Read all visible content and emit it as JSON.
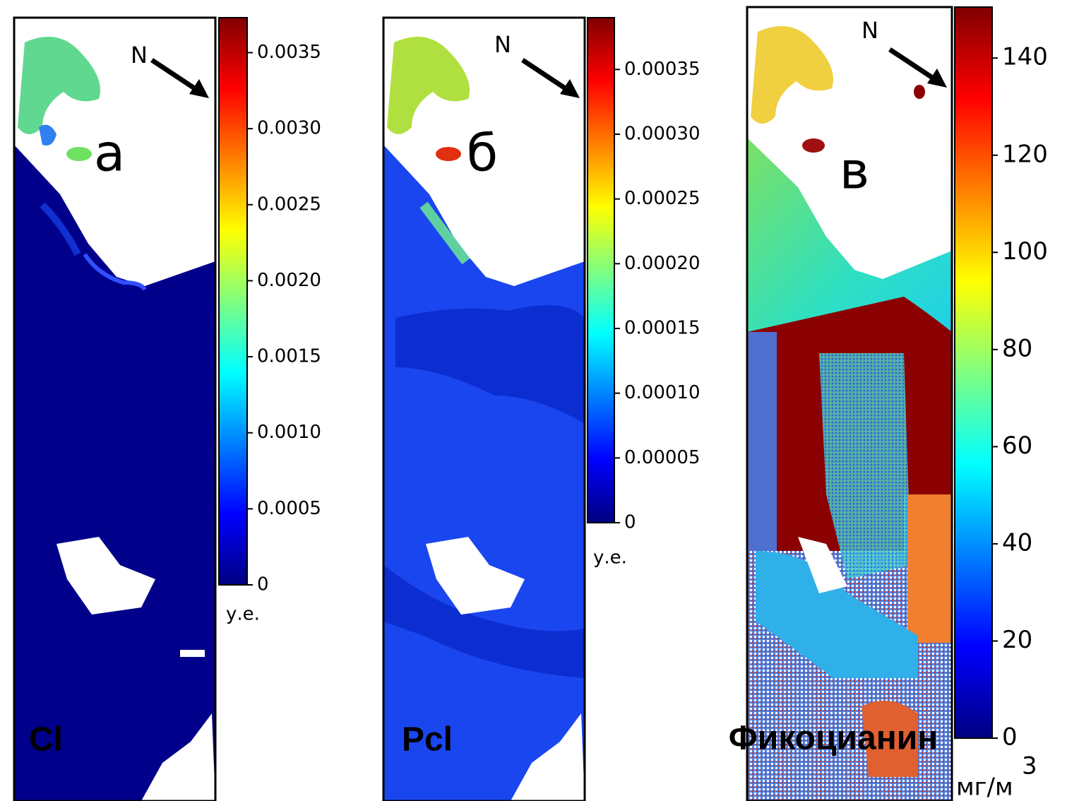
{
  "panels": [
    {
      "letter": "а",
      "north": "N",
      "label": "Cl",
      "colorbar": {
        "lim": [
          0,
          0.00373
        ],
        "ticks": [
          0,
          0.0005,
          {
            "value": 0.001,
            "label": "0.0010"
          },
          0.0015,
          {
            "value": 0.002,
            "label": "0.0020"
          },
          0.0025,
          {
            "value": 0.003,
            "label": "0.0030"
          },
          0.0035
        ],
        "unit": "у.е."
      }
    },
    {
      "letter": "б",
      "north": "N",
      "label": "Pcl",
      "colorbar": {
        "lim": [
          0,
          0.00039
        ],
        "ticks": [
          0,
          5e-05,
          {
            "value": 0.0001,
            "label": "0.00010"
          },
          0.00015,
          {
            "value": 0.0002,
            "label": "0.00020"
          },
          0.00025,
          {
            "value": 0.0003,
            "label": "0.00030"
          },
          0.00035
        ],
        "unit": "у.е."
      }
    },
    {
      "letter": "в",
      "north": "N",
      "label": "Фикоцианин",
      "colorbar": {
        "lim": [
          0,
          150.5
        ],
        "ticks": [
          0,
          20,
          40,
          60,
          80,
          100,
          120,
          140
        ],
        "unit": "мг/м",
        "unit_power": "3"
      }
    }
  ]
}
